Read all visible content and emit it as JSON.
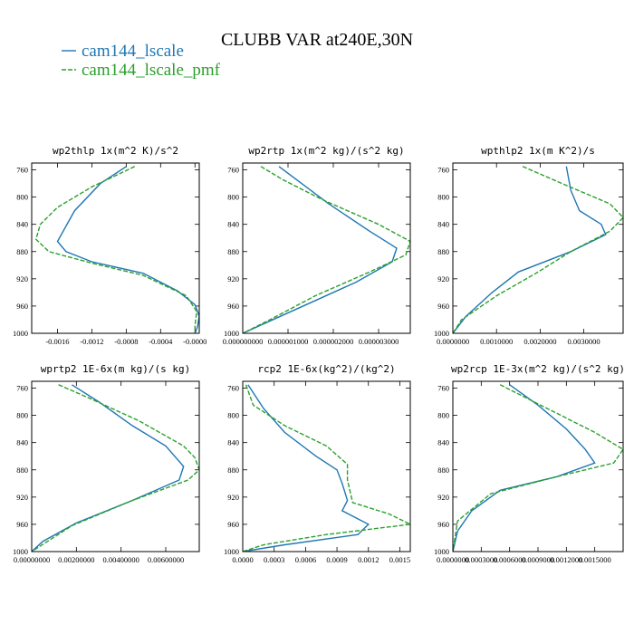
{
  "title": "CLUBB VAR at240E,30N",
  "legend": [
    {
      "label": "cam144_lscale",
      "color": "#1f77b4",
      "dash": "none"
    },
    {
      "label": "cam144_lscale_pmf",
      "color": "#2ca02c",
      "dash": "5,2"
    }
  ],
  "chart_data": [
    {
      "type": "line",
      "title": "wp2thlp  1x(m^2 K)/s^2",
      "xlim": [
        -0.0019,
        5e-05
      ],
      "ylim": [
        1000,
        750
      ],
      "xticks": [
        -0.0016,
        -0.0012,
        -0.0008,
        -0.0004,
        0.0
      ],
      "xtick_labels": [
        "-0.0016",
        "-0.0012",
        "-0.0008",
        "-0.0004",
        "-0.0000"
      ],
      "yticks": [
        760,
        800,
        840,
        880,
        920,
        960,
        1000
      ],
      "series": [
        {
          "name": "cam144_lscale",
          "x": [
            -0.0008,
            -0.0011,
            -0.0014,
            -0.0016,
            -0.0015,
            -0.0012,
            -0.0006,
            -0.0002,
            0.0,
            5e-05,
            3e-05,
            0.0
          ],
          "y": [
            755,
            780,
            820,
            865,
            880,
            895,
            912,
            938,
            958,
            975,
            990,
            1000
          ]
        },
        {
          "name": "cam144_lscale_pmf",
          "x": [
            -0.0007,
            -0.0012,
            -0.0016,
            -0.0018,
            -0.00185,
            -0.0017,
            -0.0012,
            -0.0006,
            -0.0001,
            2e-05,
            0.0,
            0.0
          ],
          "y": [
            755,
            785,
            815,
            840,
            862,
            880,
            897,
            915,
            945,
            968,
            988,
            1000
          ]
        }
      ]
    },
    {
      "type": "line",
      "title": "wp2rtp  1x(m^2 kg)/(s^2 kg)",
      "xlim": [
        0.0,
        3.7e-06
      ],
      "ylim": [
        1000,
        750
      ],
      "xticks": [
        0.0,
        1e-06,
        2e-06,
        3e-06
      ],
      "xtick_labels": [
        "0.000000000",
        "0.000001000",
        "0.000002000",
        "0.000003000"
      ],
      "yticks": [
        760,
        800,
        840,
        880,
        920,
        960,
        1000
      ],
      "series": [
        {
          "name": "cam144_lscale",
          "x": [
            8e-07,
            1.2e-06,
            1.9e-06,
            2.8e-06,
            3.4e-06,
            3.3e-06,
            2.5e-06,
            1.5e-06,
            5e-07,
            0.0
          ],
          "y": [
            755,
            775,
            810,
            850,
            875,
            895,
            925,
            955,
            985,
            1000
          ]
        },
        {
          "name": "cam144_lscale_pmf",
          "x": [
            4e-07,
            9e-07,
            1.8e-06,
            3e-06,
            3.7e-06,
            3.6e-06,
            2.8e-06,
            1.6e-06,
            6e-07,
            0.0
          ],
          "y": [
            755,
            775,
            805,
            840,
            865,
            885,
            910,
            945,
            980,
            1000
          ]
        }
      ]
    },
    {
      "type": "line",
      "title": "wpthlp2  1x(m K^2)/s",
      "xlim": [
        0.0,
        0.0039
      ],
      "ylim": [
        1000,
        750
      ],
      "xticks": [
        0.0,
        0.001,
        0.002,
        0.003
      ],
      "xtick_labels": [
        "0.0000000",
        "0.0010000",
        "0.0020000",
        "0.0030000"
      ],
      "yticks": [
        760,
        800,
        840,
        880,
        920,
        960,
        1000
      ],
      "series": [
        {
          "name": "cam144_lscale",
          "x": [
            0.0026,
            0.0027,
            0.0029,
            0.0034,
            0.0035,
            0.0027,
            0.0015,
            0.0009,
            0.0003,
            0.0
          ],
          "y": [
            755,
            790,
            820,
            840,
            855,
            880,
            910,
            940,
            975,
            1000
          ]
        },
        {
          "name": "cam144_lscale_pmf",
          "x": [
            0.0016,
            0.0025,
            0.0036,
            0.0039,
            0.0036,
            0.0027,
            0.0019,
            0.001,
            0.0002,
            0.0
          ],
          "y": [
            755,
            780,
            810,
            830,
            850,
            880,
            912,
            945,
            980,
            1000
          ]
        }
      ]
    },
    {
      "type": "line",
      "title": "wprtp2  1E-6x(m kg)/(s kg)",
      "xlim": [
        0.0,
        0.0075
      ],
      "ylim": [
        1000,
        750
      ],
      "xticks": [
        0.0,
        0.002,
        0.004,
        0.006
      ],
      "xtick_labels": [
        "0.00000000",
        "0.00200000",
        "0.00400000",
        "0.00600000"
      ],
      "yticks": [
        760,
        800,
        840,
        880,
        920,
        960,
        1000
      ],
      "series": [
        {
          "name": "cam144_lscale",
          "x": [
            0.0018,
            0.003,
            0.0045,
            0.006,
            0.0068,
            0.0066,
            0.0045,
            0.002,
            0.0005,
            0.0
          ],
          "y": [
            755,
            780,
            815,
            845,
            875,
            895,
            925,
            958,
            985,
            1000
          ]
        },
        {
          "name": "cam144_lscale_pmf",
          "x": [
            0.0012,
            0.0026,
            0.0048,
            0.0068,
            0.0073,
            0.0075,
            0.007,
            0.0045,
            0.0018,
            0.0
          ],
          "y": [
            755,
            775,
            808,
            845,
            862,
            880,
            895,
            925,
            962,
            1000
          ]
        }
      ]
    },
    {
      "type": "line",
      "title": "rcp2  1E-6x(kg^2)/(kg^2)",
      "xlim": [
        0.0,
        0.0016
      ],
      "ylim": [
        1000,
        750
      ],
      "xticks": [
        0.0,
        0.0003,
        0.0006,
        0.0009,
        0.0012,
        0.0015
      ],
      "xtick_labels": [
        "0.0000",
        "0.0003",
        "0.0006",
        "0.0009",
        "0.0012",
        "0.0015"
      ],
      "yticks": [
        760,
        800,
        840,
        880,
        920,
        960,
        1000
      ],
      "series": [
        {
          "name": "cam144_lscale",
          "x": [
            5e-05,
            0.0002,
            0.0004,
            0.0007,
            0.0009,
            0.00095,
            0.001,
            0.00095,
            0.0012,
            0.0011,
            0.0004,
            0.0
          ],
          "y": [
            755,
            790,
            825,
            860,
            880,
            900,
            925,
            940,
            960,
            975,
            990,
            1000
          ]
        },
        {
          "name": "cam144_lscale_pmf",
          "x": [
            3e-05,
            0.0001,
            0.0004,
            0.0008,
            0.001,
            0.001,
            0.00105,
            0.0014,
            0.0016,
            0.0008,
            0.0002,
            0.0
          ],
          "y": [
            755,
            785,
            815,
            845,
            872,
            895,
            928,
            945,
            960,
            975,
            990,
            1000
          ]
        }
      ]
    },
    {
      "type": "line",
      "title": "wp2rcp  1E-3x(m^2 kg)/(s^2 kg)",
      "xlim": [
        0.0,
        0.0018
      ],
      "ylim": [
        1000,
        750
      ],
      "xticks": [
        0.0,
        0.0003,
        0.0006,
        0.0009,
        0.0012,
        0.0015
      ],
      "xtick_labels": [
        "0.0000000",
        "0.0003000",
        "0.0006000",
        "0.0009000",
        "0.0012000",
        "0.0015000"
      ],
      "yticks": [
        760,
        800,
        840,
        880,
        920,
        960,
        1000
      ],
      "series": [
        {
          "name": "cam144_lscale",
          "x": [
            0.0006,
            0.0009,
            0.0012,
            0.0014,
            0.0015,
            0.0011,
            0.0005,
            0.0002,
            5e-05,
            0.0
          ],
          "y": [
            755,
            785,
            820,
            850,
            870,
            890,
            910,
            940,
            970,
            1000
          ]
        },
        {
          "name": "cam144_lscale_pmf",
          "x": [
            0.0005,
            0.001,
            0.0015,
            0.0018,
            0.0017,
            0.0011,
            0.0004,
            5e-05,
            0.0
          ],
          "y": [
            755,
            790,
            825,
            850,
            870,
            890,
            915,
            955,
            1000
          ]
        }
      ]
    }
  ]
}
